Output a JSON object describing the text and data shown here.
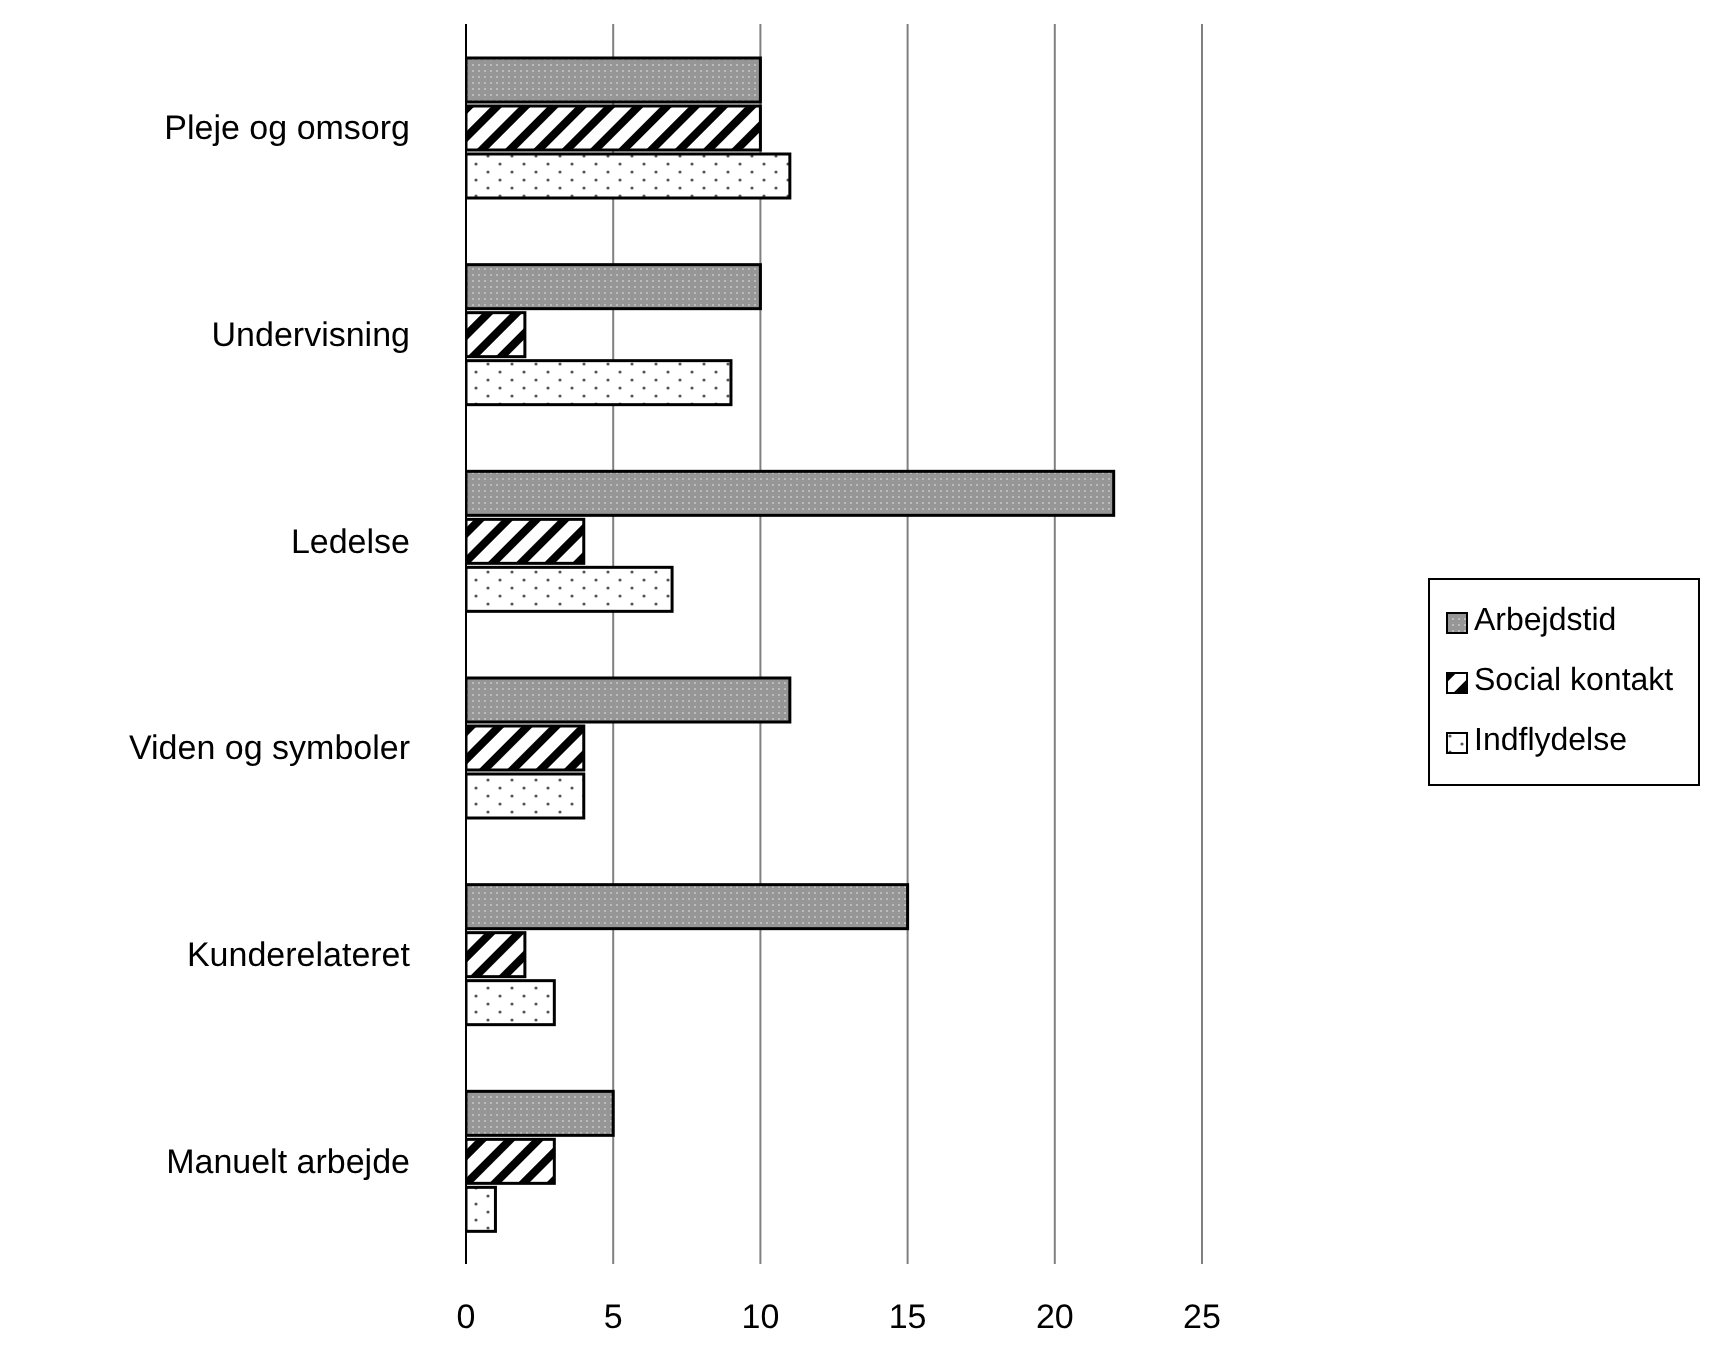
{
  "chart_data": {
    "type": "bar",
    "orientation": "horizontal",
    "categories": [
      "Pleje og omsorg",
      "Undervisning",
      "Ledelse",
      "Viden og symboler",
      "Kunderelateret",
      "Manuelt arbejde"
    ],
    "series": [
      {
        "name": "Arbejdstid",
        "color": "#969696",
        "values": [
          10,
          10,
          22,
          11,
          15,
          5
        ]
      },
      {
        "name": "Social kontakt",
        "color": "#000000",
        "values": [
          10,
          2,
          4,
          4,
          2,
          3
        ]
      },
      {
        "name": "Indflydelse",
        "color": "#ffffff",
        "values": [
          11,
          9,
          7,
          4,
          3,
          1
        ]
      }
    ],
    "xlim": [
      0,
      25
    ],
    "xticks": [
      0,
      5,
      10,
      15,
      20,
      25
    ],
    "grid": "x",
    "legend": "right"
  }
}
